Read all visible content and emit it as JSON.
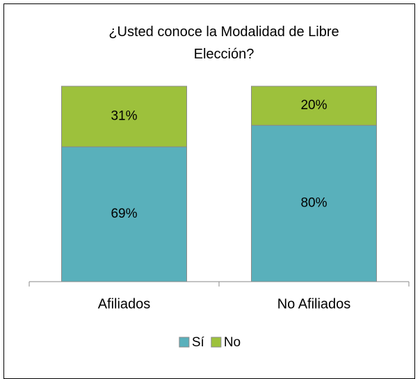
{
  "chart_data": {
    "type": "stacked_bar",
    "title": "¿Usted conoce la Modalidad de Libre Elección?",
    "categories": [
      "Afiliados",
      "No Afiliados"
    ],
    "series": [
      {
        "name": "Sí",
        "color": "#59b0bb",
        "values": [
          69,
          80
        ],
        "value_labels": [
          "69%",
          "80%"
        ]
      },
      {
        "name": "No",
        "color": "#9dc13c",
        "values": [
          31,
          20
        ],
        "value_labels": [
          "31%",
          "20%"
        ]
      }
    ],
    "legend": "bottom"
  }
}
